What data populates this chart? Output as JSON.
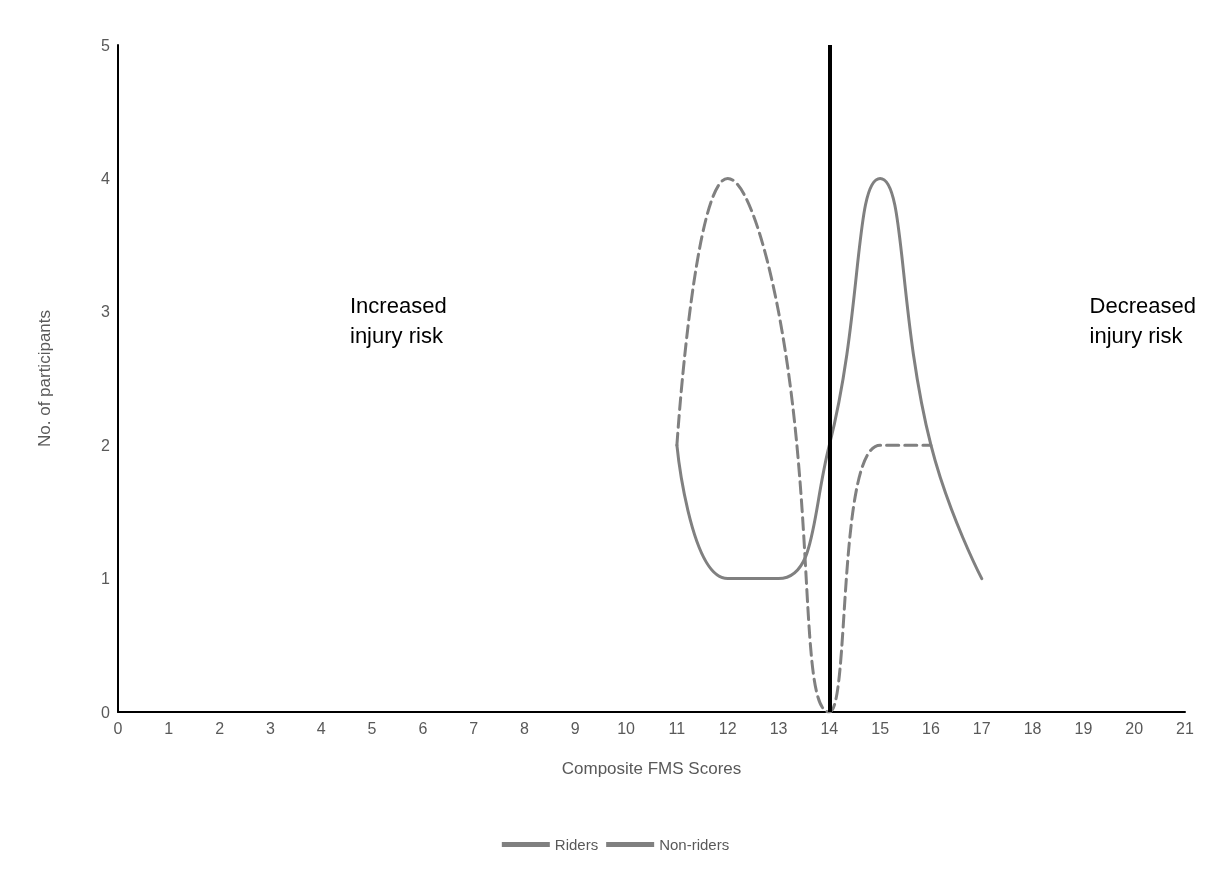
{
  "chart_data": {
    "type": "line",
    "xlabel": "Composite FMS Scores",
    "ylabel": "No. of participants",
    "x": [
      11,
      12,
      13,
      14,
      15,
      16,
      17
    ],
    "series": [
      {
        "name": "Riders",
        "color": "#808080",
        "line_style": "solid",
        "values": [
          2,
          1,
          1,
          2,
          4,
          2,
          1
        ]
      },
      {
        "name": "Non-riders",
        "color": "#808080",
        "line_style": "dashed",
        "values": [
          2,
          4,
          3,
          0,
          2,
          2,
          null
        ]
      }
    ],
    "xlim": [
      0,
      21
    ],
    "xticks": [
      0,
      1,
      2,
      3,
      4,
      5,
      6,
      7,
      8,
      9,
      10,
      11,
      12,
      13,
      14,
      15,
      16,
      17,
      18,
      19,
      20,
      21
    ],
    "ylim": [
      0,
      5
    ],
    "yticks": [
      0,
      1,
      2,
      3,
      4,
      5
    ],
    "ref_lines": [
      {
        "axis": "x",
        "value": 14,
        "color": "#000000",
        "line_style": "solid"
      }
    ],
    "annotations": [
      "Increased\ninjury risk",
      "Decreased\ninjury risk"
    ],
    "grid": false,
    "legend": "bottom",
    "marker": "none"
  }
}
